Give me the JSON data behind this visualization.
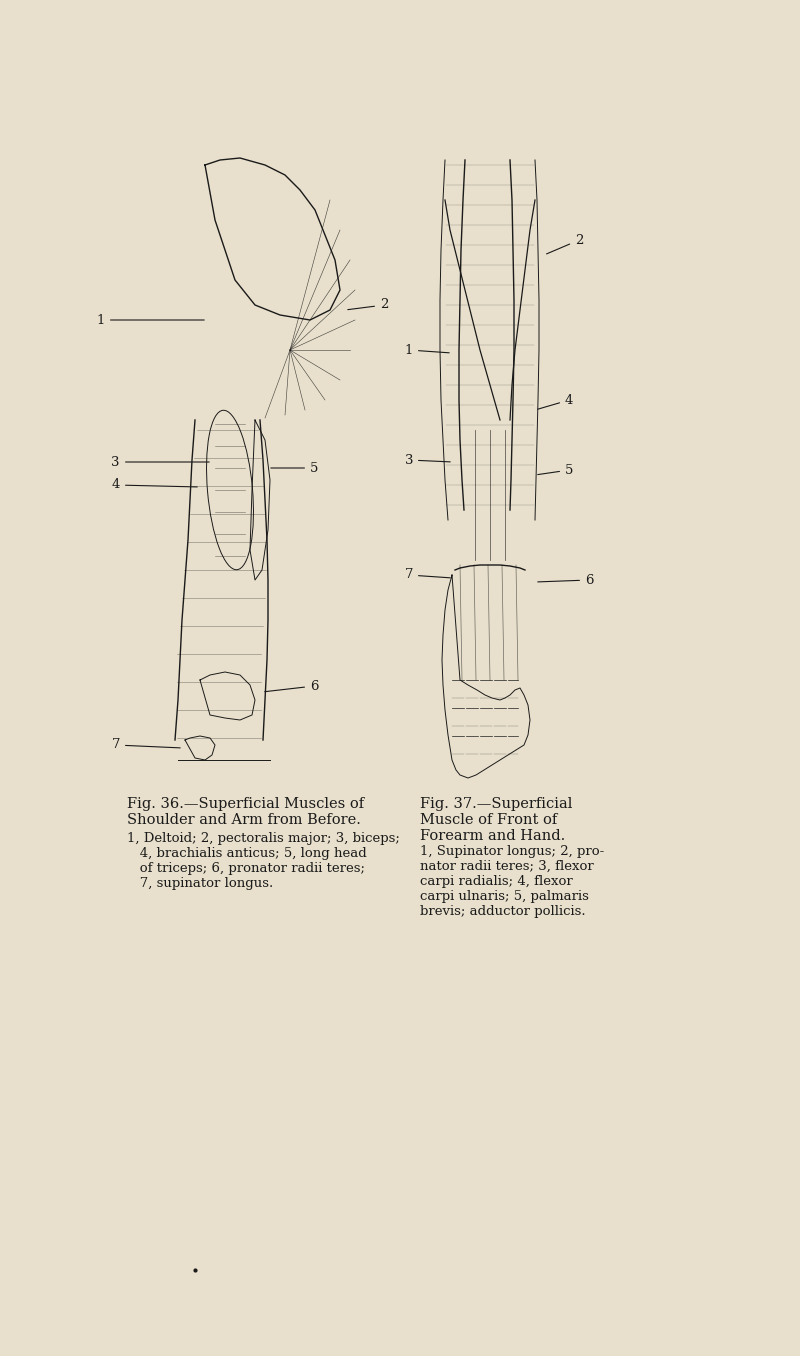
{
  "background_color": "#e8e0cc",
  "page_width": 8.0,
  "page_height": 13.56,
  "fig36_title": "Fig. 36.—Superficial Muscles of\nShoulder and Arm from Before.",
  "fig36_caption": "1, Deltoid; 2, pectoralis major; 3, biceps;\n   4, brachialis anticus; 5, long head\n   of triceps; 6, pronator radii teres;\n   7, supinator longus.",
  "fig37_title": "Fig. 37.—Superficial\nMuscle of Front of\nForearm and Hand.",
  "fig37_caption": "1, Supinator longus; 2, pro-\nnator radii teres; 3, flexor\ncarpi radialis; 4, flexor\ncarpi ulnaris; 5, palmaris\nbrevis; adductor pollicis.",
  "text_color": "#1a1a1a",
  "line_color": "#1a1a1a",
  "label_fontsize": 9.5,
  "title_fontsize": 10.5,
  "caption_fontsize": 9.5
}
